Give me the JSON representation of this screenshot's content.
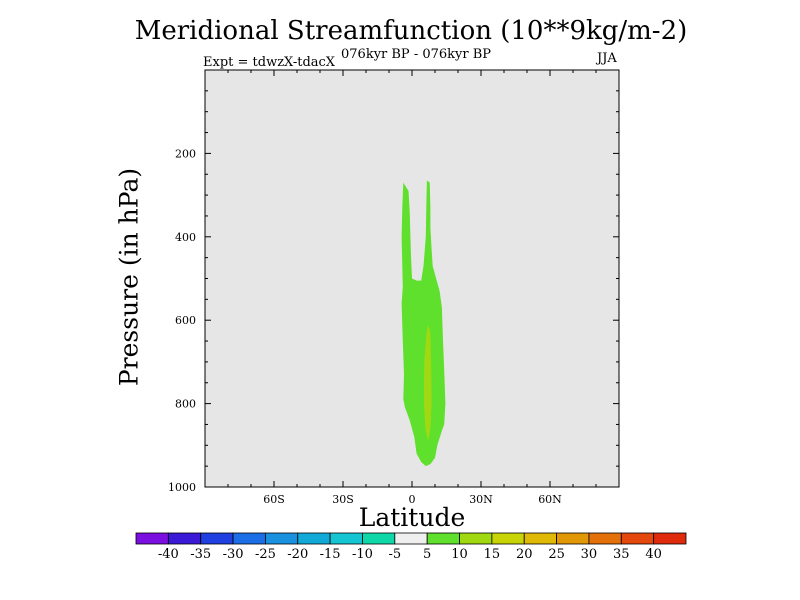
{
  "chart_data": {
    "type": "heatmap",
    "title": "Meridional Streamfunction (10**9kg/m-2)",
    "subtitle": "076kyr BP - 076kyr BP",
    "experiment_label": "Expt = tdwzX-tdacX",
    "season": "JJA",
    "xlabel": "Latitude",
    "ylabel": "Pressure (in hPa)",
    "xlim": [
      -90,
      90
    ],
    "ylim": [
      1000,
      0
    ],
    "x_ticks": [
      {
        "value": -60,
        "label": "60S"
      },
      {
        "value": -30,
        "label": "30S"
      },
      {
        "value": 0,
        "label": "0"
      },
      {
        "value": 30,
        "label": "30N"
      },
      {
        "value": 60,
        "label": "60N"
      }
    ],
    "y_ticks": [
      {
        "value": 200,
        "label": "200"
      },
      {
        "value": 400,
        "label": "400"
      },
      {
        "value": 600,
        "label": "600"
      },
      {
        "value": 800,
        "label": "800"
      },
      {
        "value": 1000,
        "label": "1000"
      }
    ],
    "background_color": "#e6e6e6",
    "colorbar": {
      "levels": [
        -40,
        -35,
        -30,
        -25,
        -20,
        -15,
        -10,
        -5,
        5,
        10,
        15,
        20,
        25,
        30,
        35,
        40
      ],
      "colors": [
        "#7a0fe0",
        "#3a1ad6",
        "#1f3fe0",
        "#1c6ee6",
        "#1991df",
        "#11a9d8",
        "#15c6d2",
        "#0fd8a8",
        "#efefef",
        "#5ee02c",
        "#a0d912",
        "#c8d406",
        "#e0b806",
        "#e29707",
        "#e4700a",
        "#e4480c",
        "#df2a0c"
      ]
    },
    "contours": [
      {
        "level_range": [
          5,
          10
        ],
        "color": "#5ee02c",
        "points": [
          [
            -3.8,
            270
          ],
          [
            -1.5,
            290
          ],
          [
            -1.0,
            340
          ],
          [
            -0.5,
            440
          ],
          [
            0,
            500
          ],
          [
            2,
            505
          ],
          [
            4,
            505
          ],
          [
            5,
            470
          ],
          [
            6,
            400
          ],
          [
            6.2,
            330
          ],
          [
            6.5,
            265
          ],
          [
            7.7,
            270
          ],
          [
            8,
            330
          ],
          [
            8,
            380
          ],
          [
            8.5,
            430
          ],
          [
            9,
            470
          ],
          [
            10.5,
            500
          ],
          [
            12,
            530
          ],
          [
            13,
            570
          ],
          [
            13.5,
            650
          ],
          [
            14,
            720
          ],
          [
            14.5,
            800
          ],
          [
            14,
            850
          ],
          [
            13,
            865
          ],
          [
            11,
            900
          ],
          [
            10,
            930
          ],
          [
            8,
            945
          ],
          [
            6,
            950
          ],
          [
            4,
            940
          ],
          [
            2,
            920
          ],
          [
            1,
            880
          ],
          [
            -1,
            840
          ],
          [
            -3,
            810
          ],
          [
            -3.8,
            790
          ],
          [
            -3.5,
            730
          ],
          [
            -4,
            650
          ],
          [
            -4.5,
            560
          ],
          [
            -4,
            520
          ],
          [
            -4.2,
            470
          ],
          [
            -4.5,
            400
          ],
          [
            -4.2,
            330
          ]
        ]
      },
      {
        "level_range": [
          10,
          15
        ],
        "color": "#a0d912",
        "points": [
          [
            6.2,
            635
          ],
          [
            7,
            610
          ],
          [
            8,
            630
          ],
          [
            8.3,
            700
          ],
          [
            8.5,
            800
          ],
          [
            8,
            860
          ],
          [
            7,
            890
          ],
          [
            5.8,
            860
          ],
          [
            5.2,
            800
          ],
          [
            5.3,
            700
          ]
        ]
      }
    ]
  }
}
